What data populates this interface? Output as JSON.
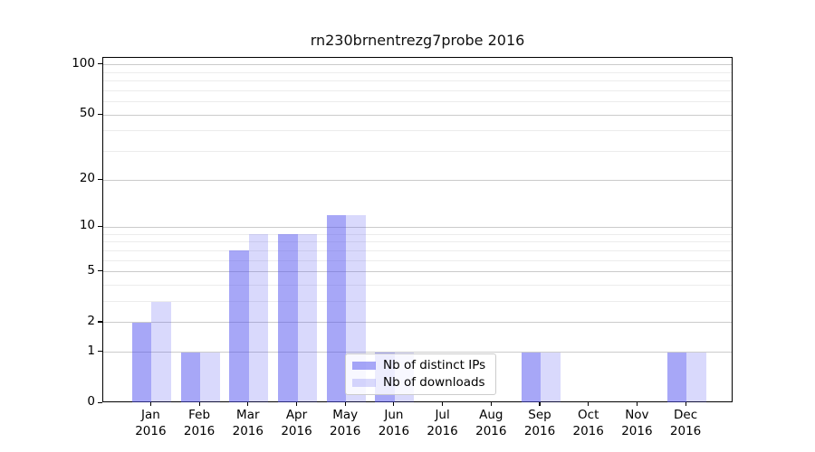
{
  "chart_data": {
    "type": "bar",
    "title": "rn230brnentrezg7probe 2016",
    "categories": [
      "Jan",
      "Feb",
      "Mar",
      "Apr",
      "May",
      "Jun",
      "Jul",
      "Aug",
      "Sep",
      "Oct",
      "Nov",
      "Dec"
    ],
    "x_tick_second_line": "2016",
    "series": [
      {
        "name": "Nb of distinct IPs",
        "color": "rgba(80,80,240,0.5)",
        "values": [
          2,
          1,
          7,
          9,
          12,
          1,
          0,
          0,
          1,
          0,
          0,
          1
        ]
      },
      {
        "name": "Nb of downloads",
        "color": "rgba(80,80,240,0.22)",
        "values": [
          3,
          1,
          9,
          9,
          12,
          1,
          0,
          0,
          1,
          0,
          0,
          1
        ]
      }
    ],
    "y_scale": "log10(1+value)",
    "y_axis_ticks": [
      100,
      50,
      20,
      10,
      5,
      2,
      1,
      0
    ],
    "y_major_gridlines": [
      1,
      2,
      5,
      10,
      20,
      50,
      100
    ],
    "y_minor_gridlines": [
      3,
      4,
      6,
      7,
      8,
      9,
      30,
      40,
      60,
      70,
      80,
      90
    ],
    "ylim": [
      0,
      110
    ],
    "grid": true,
    "legend_position": "lower center",
    "colors": {
      "major_grid": "#cbcbcb",
      "minor_grid": "#ececec",
      "spine": "#000000"
    }
  }
}
